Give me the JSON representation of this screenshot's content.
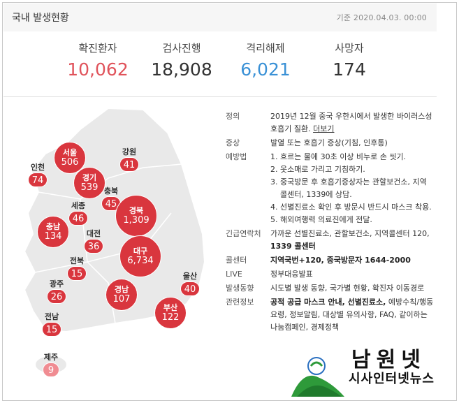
{
  "header": {
    "title": "국내 발생현황",
    "basis": "기준 2020.04.03. 00:00"
  },
  "stats": [
    {
      "label": "확진환자",
      "value": "10,062"
    },
    {
      "label": "검사진행",
      "value": "18,908"
    },
    {
      "label": "격리해제",
      "value": "6,021"
    },
    {
      "label": "사망자",
      "value": "174"
    }
  ],
  "regions": {
    "seoul": {
      "name": "서울",
      "value": "506"
    },
    "gangwon": {
      "name": "강원",
      "value": "41"
    },
    "incheon": {
      "name": "인천",
      "value": "74"
    },
    "gyeonggi": {
      "name": "경기",
      "value": "539"
    },
    "chungbuk": {
      "name": "충북",
      "value": "45"
    },
    "sejong": {
      "name": "세종",
      "value": "46"
    },
    "gyeongbuk": {
      "name": "경북",
      "value": "1,309"
    },
    "chungnam": {
      "name": "충남",
      "value": "134"
    },
    "daejeon": {
      "name": "대전",
      "value": "36"
    },
    "daegu": {
      "name": "대구",
      "value": "6,734"
    },
    "jeonbuk": {
      "name": "전북",
      "value": "15"
    },
    "ulsan": {
      "name": "울산",
      "value": "40"
    },
    "gwangju": {
      "name": "광주",
      "value": "26"
    },
    "gyeongnam": {
      "name": "경남",
      "value": "107"
    },
    "busan": {
      "name": "부산",
      "value": "122"
    },
    "jeonnam": {
      "name": "전남",
      "value": "15"
    },
    "jeju": {
      "name": "제주",
      "value": "9"
    }
  },
  "info": {
    "definition_key": "정의",
    "definition_text": "2019년 12월 중국 우한시에서 발생한 바이러스성 호흡기 질환.",
    "definition_link": "더보기",
    "symptom_key": "증상",
    "symptom_text": "발열 또는 호흡기 증상(기침, 인후통)",
    "prevention_key": "예방법",
    "prevention_items": [
      "1. 흐르는 물에 30초 이상 비누로 손 씻기.",
      "2. 옷소매로 가리고 기침하기.",
      "3. 중국방문 후 호흡기증상자는 관할보건소, 지역 콜센터, 1339에 상담.",
      "4. 선별진료소 확인 후 방문시 반드시 마스크 착용.",
      "5. 해외여행력 의료진에게 전달."
    ],
    "contact_key": "긴급연락처",
    "contact_text": "가까운 선별진료소, 관할보건소, 지역콜센터 120,",
    "contact_bold": "1339 콜센터",
    "callcenter_key": "콜센터",
    "callcenter_text": "지역국번+120, 중국방문자 1644-2000",
    "live_key": "LIVE",
    "live_text": "정부대응발표",
    "trend_key": "발생동향",
    "trend_text": "시도별 발생 동향, 국가별 현황, 확진자 이동경로",
    "related_key": "관련정보",
    "related_bold": "공적 공급 마스크 안내, 선별진료소,",
    "related_text": "예방수칙/행동요령, 정보알림, 대상별 유의사항, FAQ, 같이하는 나눔캠페인, 경제정책"
  },
  "logo": {
    "brand": "남원넷",
    "sub": "시사인터넷뉴스"
  }
}
